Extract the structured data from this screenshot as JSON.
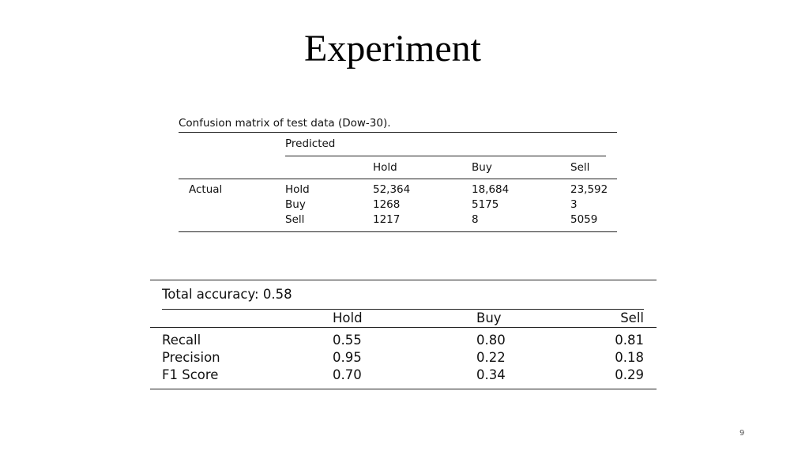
{
  "slide": {
    "title": "Experiment",
    "page_number": "9"
  },
  "confusion_table": {
    "caption": "Confusion matrix of test data (Dow-30).",
    "predicted_label": "Predicted",
    "columns": [
      "Hold",
      "Buy",
      "Sell"
    ],
    "actual_label": "Actual",
    "rows": [
      {
        "label": "Hold",
        "values": [
          "52,364",
          "18,684",
          "23,592"
        ]
      },
      {
        "label": "Buy",
        "values": [
          "1268",
          "5175",
          "3"
        ]
      },
      {
        "label": "Sell",
        "values": [
          "1217",
          "8",
          "5059"
        ]
      }
    ]
  },
  "metrics_table": {
    "accuracy": "Total accuracy: 0.58",
    "columns": [
      "Hold",
      "Buy",
      "Sell"
    ],
    "rows": [
      {
        "label": "Recall",
        "values": [
          "0.55",
          "0.80",
          "0.81"
        ]
      },
      {
        "label": "Precision",
        "values": [
          "0.95",
          "0.22",
          "0.18"
        ]
      },
      {
        "label": "F1 Score",
        "values": [
          "0.70",
          "0.34",
          "0.29"
        ]
      }
    ]
  }
}
